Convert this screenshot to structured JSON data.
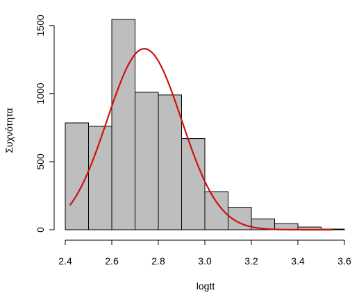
{
  "chart_data": {
    "type": "bar",
    "subtype": "histogram",
    "title": "",
    "xlabel": "logtt",
    "ylabel": "Συχνότητα",
    "bins": [
      {
        "from": 2.4,
        "to": 2.5,
        "count": 785
      },
      {
        "from": 2.5,
        "to": 2.6,
        "count": 760
      },
      {
        "from": 2.6,
        "to": 2.7,
        "count": 1545
      },
      {
        "from": 2.7,
        "to": 2.8,
        "count": 1010
      },
      {
        "from": 2.8,
        "to": 2.9,
        "count": 990
      },
      {
        "from": 2.9,
        "to": 3.0,
        "count": 670
      },
      {
        "from": 3.0,
        "to": 3.1,
        "count": 280
      },
      {
        "from": 3.1,
        "to": 3.2,
        "count": 165
      },
      {
        "from": 3.2,
        "to": 3.3,
        "count": 80
      },
      {
        "from": 3.3,
        "to": 3.4,
        "count": 45
      },
      {
        "from": 3.4,
        "to": 3.5,
        "count": 20
      },
      {
        "from": 3.5,
        "to": 3.6,
        "count": 5
      }
    ],
    "xlim": [
      2.4,
      3.6
    ],
    "ylim": [
      0,
      1550
    ],
    "xticks": [
      "2.4",
      "2.6",
      "2.8",
      "3.0",
      "3.2",
      "3.4",
      "3.6"
    ],
    "yticks": [
      "0",
      "500",
      "1000",
      "1500"
    ],
    "overlay_curve": {
      "type": "normal-density",
      "x_from": 2.42,
      "x_to": 3.55,
      "peak_x": 2.74,
      "peak_y": 1330,
      "sd": 0.16
    },
    "bar_color": "#bebebe",
    "curve_color": "#cc1111",
    "grid": false,
    "legend": "none"
  }
}
